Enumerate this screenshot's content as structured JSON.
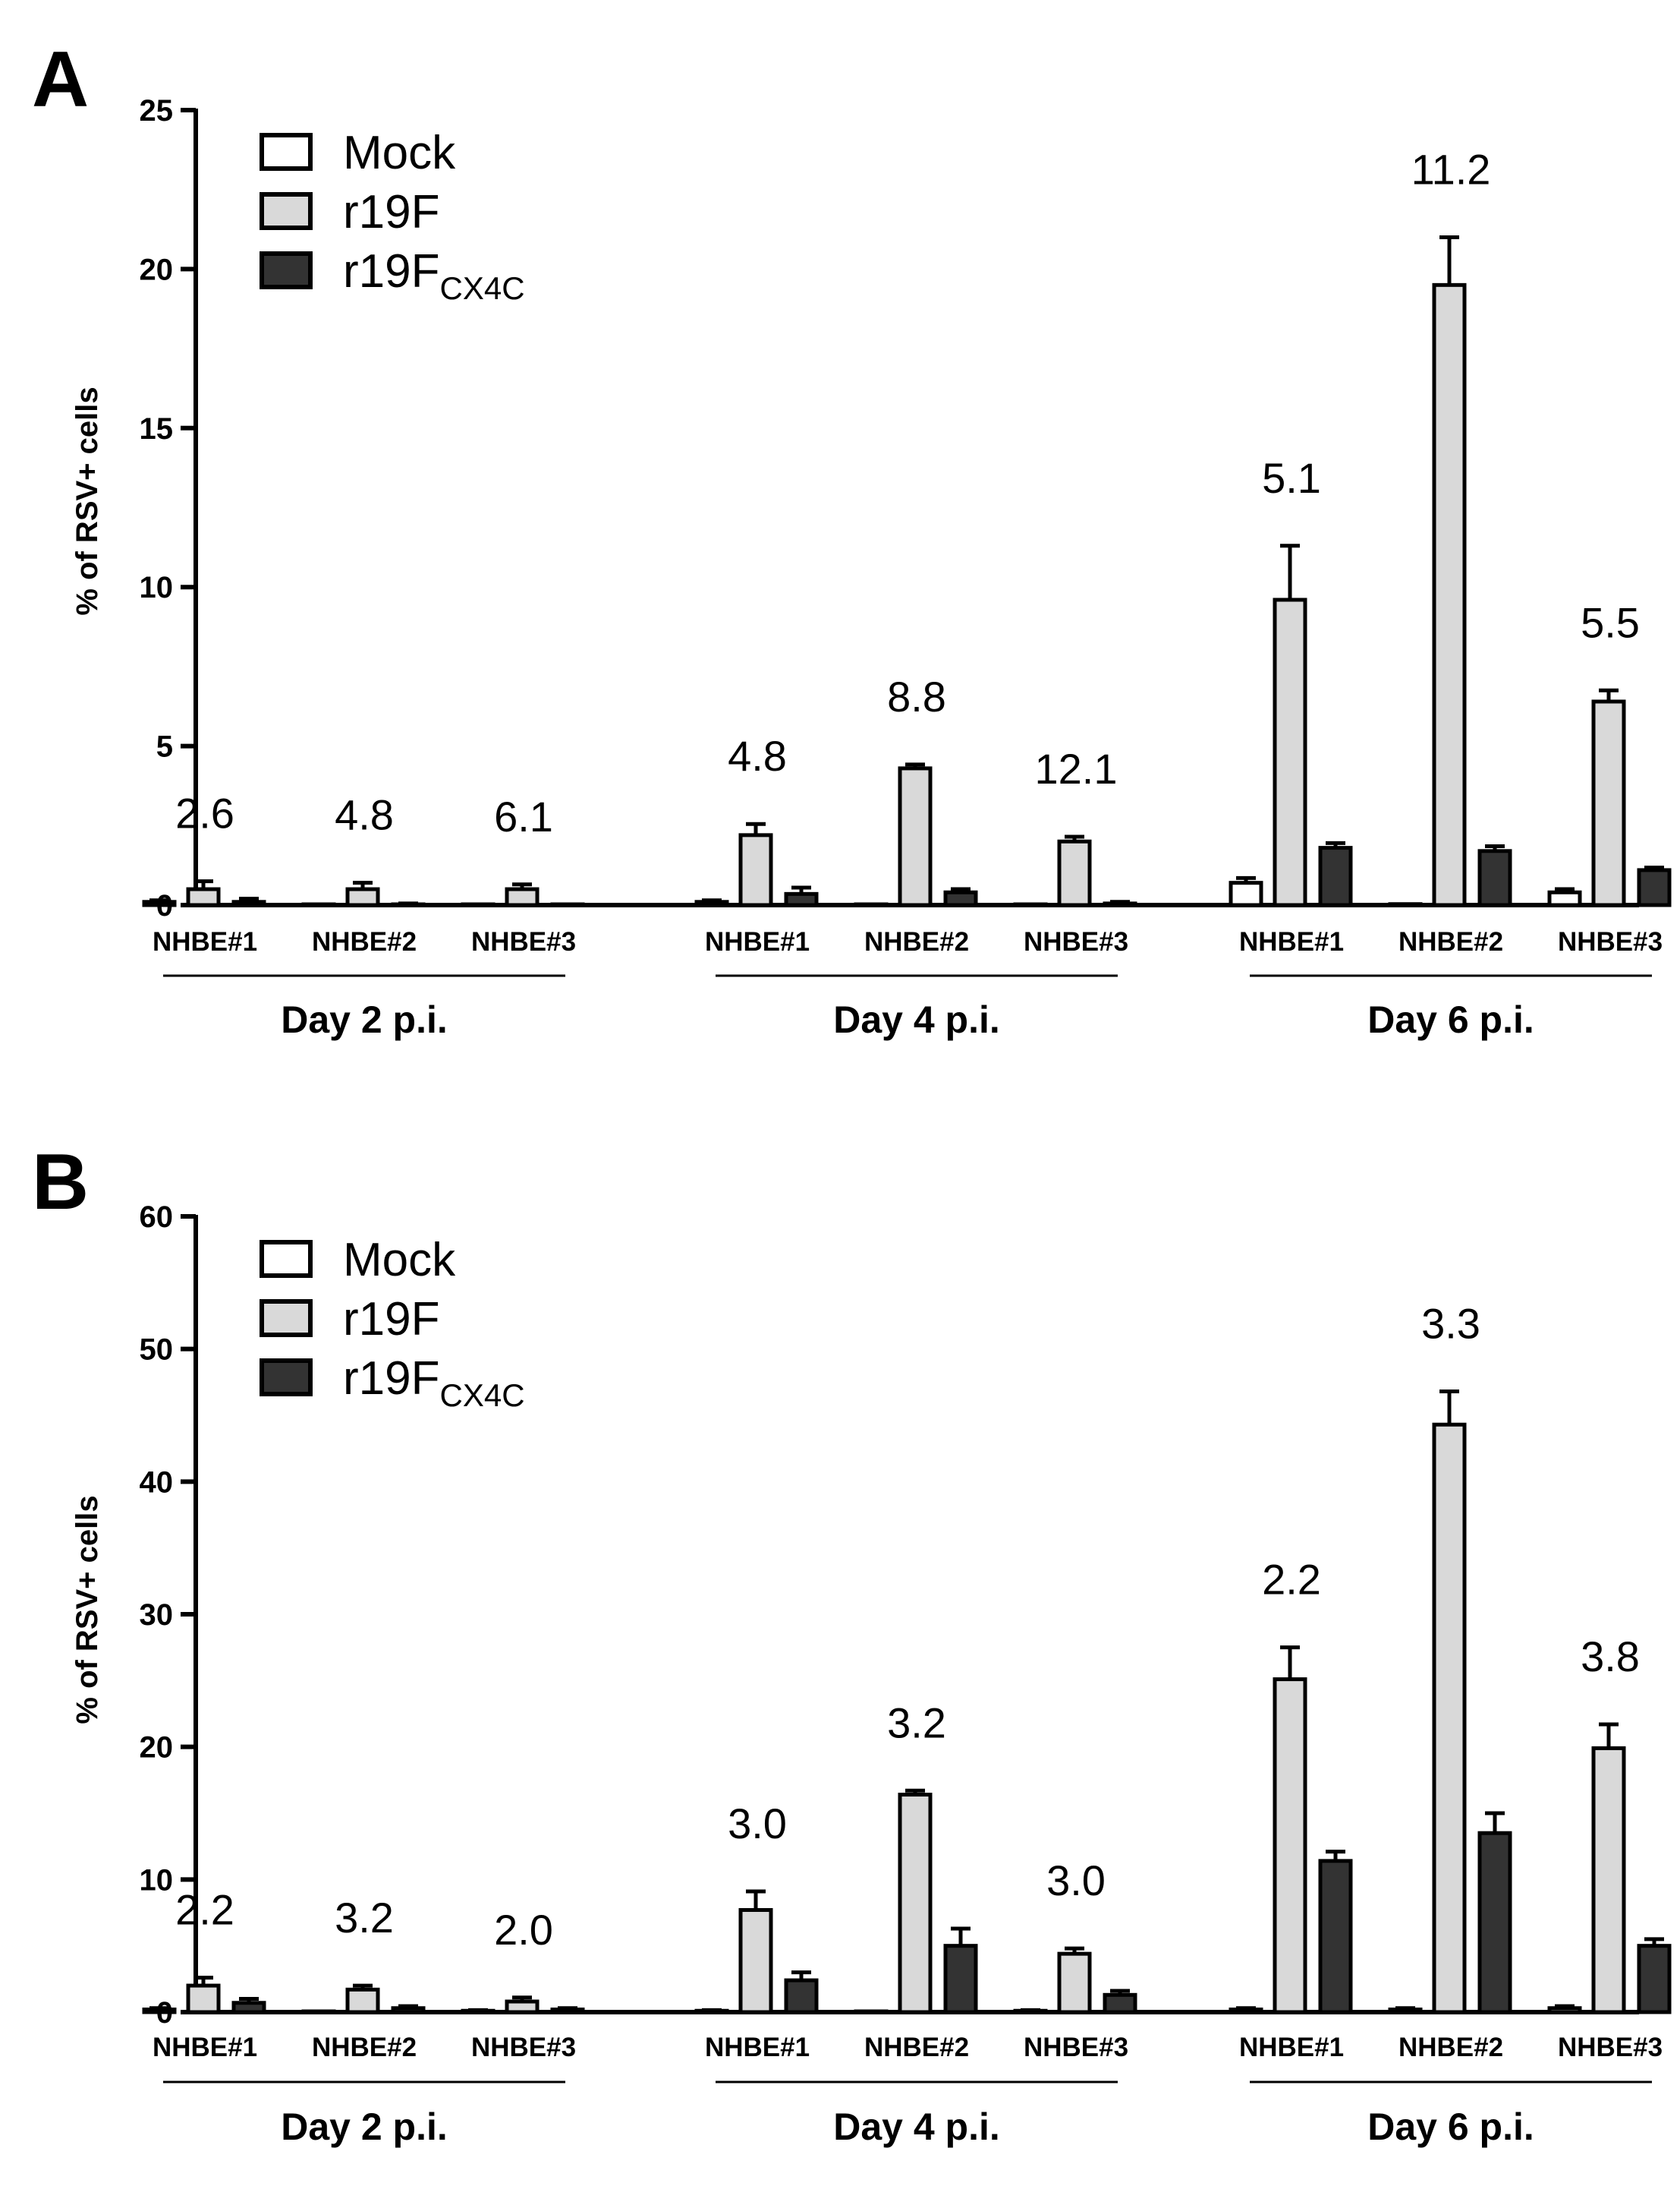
{
  "chart_data": [
    {
      "type": "bar",
      "panel": "A",
      "ylabel": "% of RSV+ cells",
      "ylim": [
        0,
        25
      ],
      "yticks": [
        0,
        5,
        10,
        15,
        20,
        25
      ],
      "legend": [
        {
          "label": "Mock",
          "subscript": "",
          "color": "#ffffff"
        },
        {
          "label": "r19F",
          "subscript": "",
          "color": "#d9d9d9"
        },
        {
          "label": "r19F",
          "subscript": "CX4C",
          "color": "#333333"
        }
      ],
      "categories": [
        "NHBE#1",
        "NHBE#2",
        "NHBE#3",
        "NHBE#1",
        "NHBE#2",
        "NHBE#3",
        "NHBE#1",
        "NHBE#2",
        "NHBE#3"
      ],
      "groups": [
        "Day 2 p.i.",
        "Day 4 p.i.",
        "Day 6 p.i."
      ],
      "series": [
        {
          "name": "Mock",
          "values": [
            0.1,
            0.02,
            0.02,
            0.1,
            0.02,
            0.02,
            0.7,
            0.03,
            0.4
          ],
          "errors": [
            0.05,
            0.0,
            0.0,
            0.05,
            0.0,
            0.0,
            0.15,
            0.0,
            0.1
          ]
        },
        {
          "name": "r19F",
          "values": [
            0.5,
            0.5,
            0.5,
            2.2,
            4.3,
            2.0,
            9.6,
            19.5,
            6.4
          ],
          "errors": [
            0.25,
            0.2,
            0.15,
            0.35,
            0.12,
            0.15,
            1.7,
            1.5,
            0.35
          ]
        },
        {
          "name": "r19FCX4C",
          "values": [
            0.1,
            0.02,
            0.0,
            0.35,
            0.4,
            0.05,
            1.8,
            1.7,
            1.1
          ],
          "errors": [
            0.1,
            0.03,
            0.0,
            0.2,
            0.1,
            0.05,
            0.15,
            0.15,
            0.08
          ]
        }
      ],
      "annotations": [
        "2.6",
        "4.8",
        "6.1",
        "4.8",
        "8.8",
        "12.1",
        "5.1",
        "11.2",
        "5.5"
      ]
    },
    {
      "type": "bar",
      "panel": "B",
      "ylabel": "% of RSV+ cells",
      "ylim": [
        0,
        60
      ],
      "yticks": [
        0,
        10,
        20,
        30,
        40,
        50,
        60
      ],
      "legend": [
        {
          "label": "Mock",
          "subscript": "",
          "color": "#ffffff"
        },
        {
          "label": "r19F",
          "subscript": "",
          "color": "#d9d9d9"
        },
        {
          "label": "r19F",
          "subscript": "CX4C",
          "color": "#333333"
        }
      ],
      "categories": [
        "NHBE#1",
        "NHBE#2",
        "NHBE#3",
        "NHBE#1",
        "NHBE#2",
        "NHBE#3",
        "NHBE#1",
        "NHBE#2",
        "NHBE#3"
      ],
      "groups": [
        "Day 2 p.i.",
        "Day 4 p.i.",
        "Day 6 p.i."
      ],
      "series": [
        {
          "name": "Mock",
          "values": [
            0.2,
            0.02,
            0.1,
            0.1,
            0.02,
            0.1,
            0.2,
            0.2,
            0.3
          ],
          "errors": [
            0.1,
            0.0,
            0.05,
            0.05,
            0.0,
            0.05,
            0.1,
            0.1,
            0.15
          ]
        },
        {
          "name": "r19F",
          "values": [
            2.0,
            1.7,
            0.8,
            7.7,
            16.4,
            4.4,
            25.1,
            44.3,
            19.9
          ],
          "errors": [
            0.6,
            0.3,
            0.3,
            1.4,
            0.3,
            0.4,
            2.4,
            2.5,
            1.8
          ]
        },
        {
          "name": "r19FCX4C",
          "values": [
            0.7,
            0.3,
            0.2,
            2.4,
            5.0,
            1.3,
            11.4,
            13.5,
            5.0
          ],
          "errors": [
            0.3,
            0.15,
            0.1,
            0.6,
            1.3,
            0.3,
            0.7,
            1.5,
            0.5
          ]
        }
      ],
      "annotations": [
        "2.2",
        "3.2",
        "2.0",
        "3.0",
        "3.2",
        "3.0",
        "2.2",
        "3.3",
        "3.8"
      ]
    }
  ],
  "colors": {
    "mock": "#ffffff",
    "r19F": "#d9d9d9",
    "r19FCX4C": "#333333",
    "axis": "#000000"
  }
}
